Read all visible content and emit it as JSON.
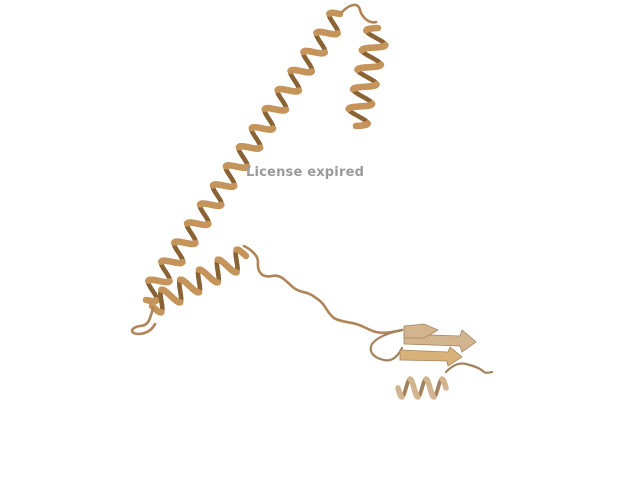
{
  "viewer": {
    "watermark": "License expired"
  },
  "colors": {
    "ribbon": "#c4945a",
    "ribbon_dark": "#8a6334",
    "ribbon_light": "#d9b27a",
    "loop": "#b08456",
    "pale": "#d2b48e",
    "pale_dark": "#a3845e"
  }
}
